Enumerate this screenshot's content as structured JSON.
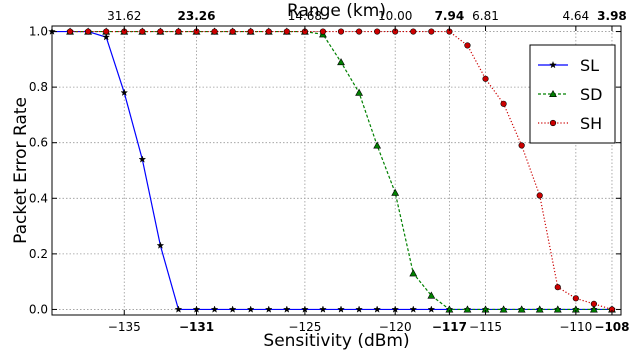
{
  "chart_data": {
    "type": "line",
    "title": "",
    "xlabel": "Sensitivity (dBm)",
    "ylabel": "Packet Error Rate",
    "top_xlabel": "Range (km)",
    "xlim": [
      -139,
      -107.5
    ],
    "ylim": [
      -0.02,
      1.02
    ],
    "grid": true,
    "legend_position": "top-right",
    "x_ticks": [
      {
        "value": -135,
        "label": "−135",
        "bold": false
      },
      {
        "value": -131,
        "label": "−131",
        "bold": true
      },
      {
        "value": -125,
        "label": "−125",
        "bold": false
      },
      {
        "value": -120,
        "label": "−120",
        "bold": false
      },
      {
        "value": -117,
        "label": "−117",
        "bold": true
      },
      {
        "value": -115,
        "label": "−115",
        "bold": false
      },
      {
        "value": -110,
        "label": "−110",
        "bold": false
      },
      {
        "value": -108,
        "label": "−108",
        "bold": true
      }
    ],
    "y_ticks": [
      {
        "value": 0.0,
        "label": "0.0"
      },
      {
        "value": 0.2,
        "label": "0.2"
      },
      {
        "value": 0.4,
        "label": "0.4"
      },
      {
        "value": 0.6,
        "label": "0.6"
      },
      {
        "value": 0.8,
        "label": "0.8"
      },
      {
        "value": 1.0,
        "label": "1.0"
      }
    ],
    "top_ticks": [
      {
        "value": -135,
        "label": "31.62",
        "bold": false
      },
      {
        "value": -131,
        "label": "23.26",
        "bold": true
      },
      {
        "value": -125,
        "label": "14.68",
        "bold": false
      },
      {
        "value": -120,
        "label": "10.00",
        "bold": false
      },
      {
        "value": -117,
        "label": "7.94",
        "bold": true
      },
      {
        "value": -115,
        "label": "6.81",
        "bold": false
      },
      {
        "value": -110,
        "label": "4.64",
        "bold": false
      },
      {
        "value": -108,
        "label": "3.98",
        "bold": true
      }
    ],
    "series": [
      {
        "name": "SL",
        "color": "#0000ff",
        "line_style": "solid",
        "marker": "star",
        "x": [
          -139,
          -138,
          -137,
          -136,
          -135,
          -134,
          -133,
          -132,
          -131,
          -130,
          -129,
          -128,
          -127,
          -126,
          -125,
          -124,
          -123,
          -122,
          -121,
          -120,
          -119,
          -118,
          -117,
          -116,
          -115,
          -114,
          -113,
          -112,
          -111,
          -110,
          -109,
          -108
        ],
        "y": [
          1.0,
          1.0,
          1.0,
          0.98,
          0.78,
          0.54,
          0.23,
          0.0,
          0.0,
          0.0,
          0.0,
          0.0,
          0.0,
          0.0,
          0.0,
          0.0,
          0.0,
          0.0,
          0.0,
          0.0,
          0.0,
          0.0,
          0.0,
          0.0,
          0.0,
          0.0,
          0.0,
          0.0,
          0.0,
          0.0,
          0.0,
          0.0
        ]
      },
      {
        "name": "SD",
        "color": "#008000",
        "line_style": "dashed",
        "marker": "triangle",
        "x": [
          -138,
          -137,
          -136,
          -135,
          -134,
          -133,
          -132,
          -131,
          -130,
          -129,
          -128,
          -127,
          -126,
          -125,
          -124,
          -123,
          -122,
          -121,
          -120,
          -119,
          -118,
          -117,
          -116,
          -115,
          -114,
          -113,
          -112,
          -111,
          -110,
          -109,
          -108
        ],
        "y": [
          1.0,
          1.0,
          1.0,
          1.0,
          1.0,
          1.0,
          1.0,
          1.0,
          1.0,
          1.0,
          1.0,
          1.0,
          1.0,
          1.0,
          0.99,
          0.89,
          0.78,
          0.59,
          0.42,
          0.13,
          0.05,
          0.0,
          0.0,
          0.0,
          0.0,
          0.0,
          0.0,
          0.0,
          0.0,
          0.0,
          0.0
        ]
      },
      {
        "name": "SH",
        "color": "#cc0000",
        "line_style": "dotted",
        "marker": "circle",
        "x": [
          -138,
          -137,
          -136,
          -135,
          -134,
          -133,
          -132,
          -131,
          -130,
          -129,
          -128,
          -127,
          -126,
          -125,
          -124,
          -123,
          -122,
          -121,
          -120,
          -119,
          -118,
          -117,
          -116,
          -115,
          -114,
          -113,
          -112,
          -111,
          -110,
          -109,
          -108
        ],
        "y": [
          1.0,
          1.0,
          1.0,
          1.0,
          1.0,
          1.0,
          1.0,
          1.0,
          1.0,
          1.0,
          1.0,
          1.0,
          1.0,
          1.0,
          1.0,
          1.0,
          1.0,
          1.0,
          1.0,
          1.0,
          1.0,
          1.0,
          0.95,
          0.83,
          0.74,
          0.59,
          0.41,
          0.08,
          0.04,
          0.02,
          0.0
        ]
      }
    ]
  }
}
